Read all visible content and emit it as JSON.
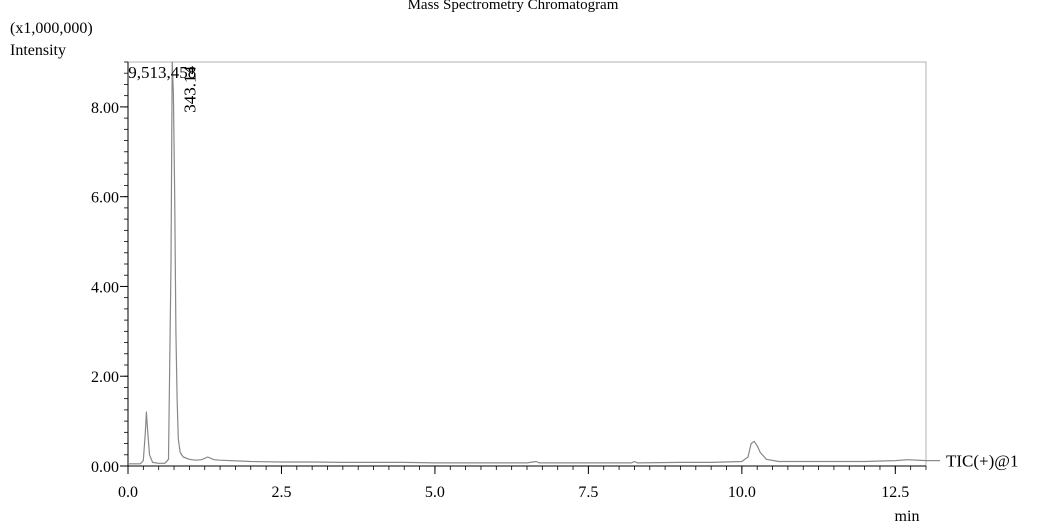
{
  "chart_data": {
    "type": "line",
    "title": "Mass Spectrometry Chromatogram",
    "y_multiplier": "(x1,000,000)",
    "ylabel": "Intensity",
    "xlabel": "min",
    "xlim": [
      0,
      13.0
    ],
    "ylim": [
      0,
      9.0
    ],
    "x_ticks": [
      0.0,
      2.5,
      5.0,
      7.5,
      10.0,
      12.5
    ],
    "x_tick_labels": [
      "0.0",
      "2.5",
      "5.0",
      "7.5",
      "10.0",
      "12.5"
    ],
    "y_ticks": [
      0,
      2,
      4,
      6,
      8
    ],
    "y_tick_labels": [
      "0.00",
      "2.00",
      "4.00",
      "6.00",
      "8.00"
    ],
    "grid": false,
    "series": [
      {
        "name": "TIC(+)@1",
        "color": "#888888",
        "x": [
          0.0,
          0.2,
          0.25,
          0.28,
          0.3,
          0.32,
          0.35,
          0.4,
          0.5,
          0.6,
          0.66,
          0.7,
          0.72,
          0.74,
          0.76,
          0.78,
          0.8,
          0.82,
          0.85,
          0.9,
          1.0,
          1.1,
          1.2,
          1.3,
          1.4,
          1.5,
          2.0,
          2.5,
          3.0,
          3.5,
          4.0,
          4.5,
          5.0,
          5.5,
          6.0,
          6.5,
          6.65,
          6.7,
          7.0,
          7.5,
          8.0,
          8.2,
          8.25,
          8.3,
          9.0,
          9.5,
          10.0,
          10.1,
          10.15,
          10.2,
          10.25,
          10.3,
          10.4,
          10.6,
          11.0,
          11.5,
          12.0,
          12.5,
          12.7,
          13.0
        ],
        "y": [
          0.05,
          0.05,
          0.12,
          0.7,
          1.2,
          0.8,
          0.25,
          0.08,
          0.06,
          0.06,
          0.15,
          4.5,
          9.0,
          8.3,
          6.0,
          3.0,
          1.5,
          0.6,
          0.3,
          0.2,
          0.15,
          0.13,
          0.14,
          0.2,
          0.14,
          0.13,
          0.1,
          0.09,
          0.09,
          0.08,
          0.08,
          0.08,
          0.07,
          0.07,
          0.07,
          0.07,
          0.1,
          0.07,
          0.07,
          0.07,
          0.07,
          0.07,
          0.1,
          0.07,
          0.08,
          0.08,
          0.1,
          0.2,
          0.5,
          0.55,
          0.45,
          0.3,
          0.15,
          0.1,
          0.1,
          0.1,
          0.1,
          0.12,
          0.14,
          0.12
        ]
      }
    ],
    "annotations": [
      {
        "text": "9,513,458",
        "orientation": "horizontal",
        "x": 0.77,
        "y": 9.0
      },
      {
        "text": "343.14",
        "orientation": "vertical",
        "x": 0.77,
        "y": 9.0
      }
    ]
  }
}
